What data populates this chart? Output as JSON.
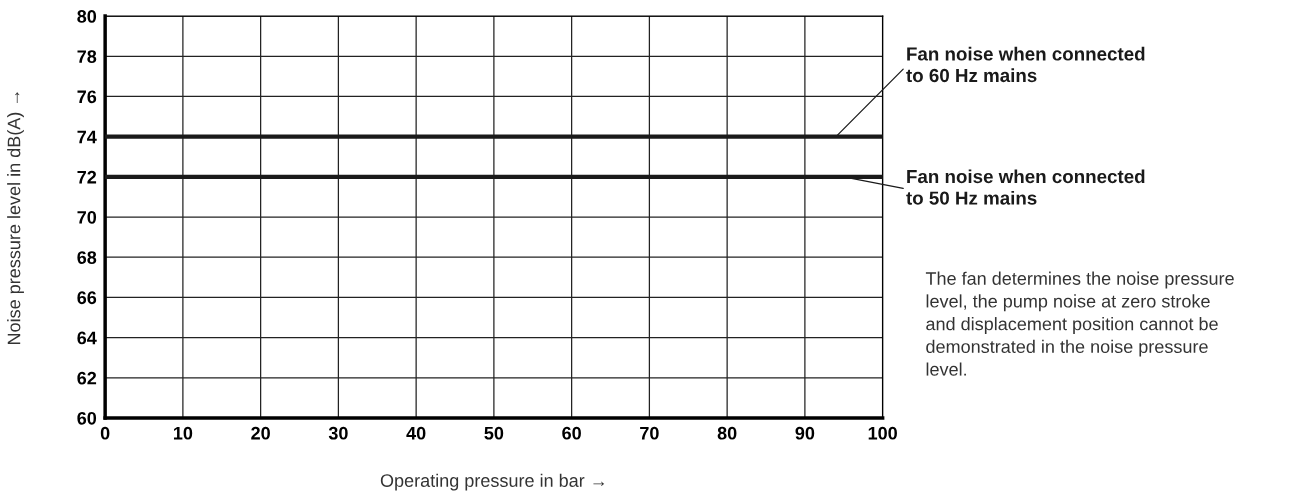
{
  "chart_data": {
    "type": "line",
    "xlabel": "Operating pressure in bar →",
    "ylabel": "Noise pressure level in dB(A) →",
    "x": [
      0,
      100
    ],
    "series": [
      {
        "color": "#1a1a1a",
        "values": [
          74,
          74
        ]
      },
      {
        "color": "#1a1a1a",
        "values": [
          72,
          72
        ]
      }
    ],
    "xlim": [
      0,
      100
    ],
    "xticks": [
      0,
      10,
      20,
      30,
      40,
      50,
      60,
      70,
      80,
      90,
      100
    ],
    "ylim": [
      60,
      80
    ],
    "yticks": [
      60,
      62,
      64,
      66,
      68,
      70,
      72,
      74,
      76,
      78,
      80
    ],
    "grid": true,
    "marker": "none",
    "line_style": "solid",
    "legend": false,
    "annotations": [
      {
        "text": "Fan noise when connected\nto 60 Hz mains",
        "x": 94,
        "y": 74
      },
      {
        "text": "Fan noise when connected\nto 50 Hz mains",
        "x": 95,
        "y": 72
      },
      "The fan determines the noise pressure\nlevel, the pump noise at zero stroke\nand displacement position cannot be\ndemonstrated in the noise pressure\nlevel."
    ]
  }
}
